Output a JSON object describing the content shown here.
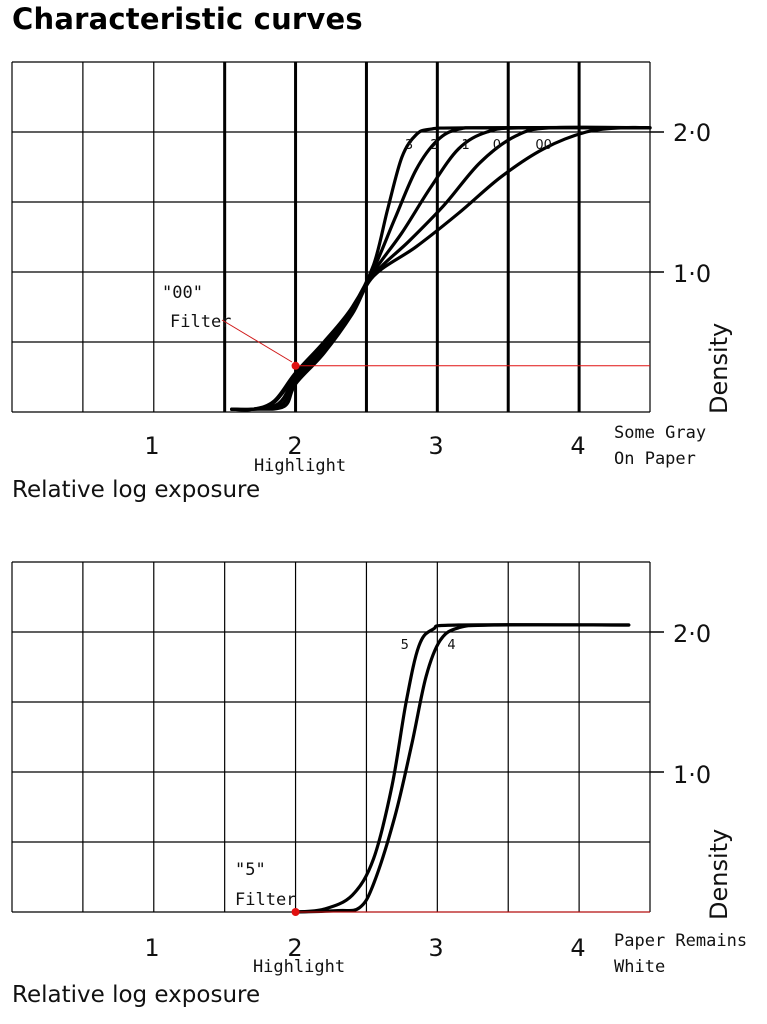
{
  "title": "Characteristic curves",
  "chart_data": [
    {
      "type": "line",
      "xlabel": "Relative log exposure",
      "ylabel": "Density",
      "xlim": [
        0,
        4.5
      ],
      "ylim": [
        0,
        2.5
      ],
      "x_ticks": [
        "1",
        "2",
        "3",
        "4"
      ],
      "y_ticks": [
        "1·0",
        "2·0"
      ],
      "grid": true,
      "series": [
        {
          "name": "3",
          "label_at": [
            2.8,
            1.88
          ],
          "points": [
            [
              1.55,
              0.02
            ],
            [
              1.7,
              0.02
            ],
            [
              1.85,
              0.08
            ],
            [
              2.0,
              0.28
            ],
            [
              2.2,
              0.5
            ],
            [
              2.4,
              0.75
            ],
            [
              2.55,
              1.05
            ],
            [
              2.65,
              1.45
            ],
            [
              2.75,
              1.82
            ],
            [
              2.85,
              1.98
            ],
            [
              2.95,
              2.02
            ],
            [
              3.2,
              2.03
            ],
            [
              4.5,
              2.03
            ]
          ]
        },
        {
          "name": "2",
          "label_at": [
            2.98,
            1.88
          ],
          "points": [
            [
              1.55,
              0.02
            ],
            [
              1.7,
              0.02
            ],
            [
              1.85,
              0.07
            ],
            [
              2.0,
              0.26
            ],
            [
              2.2,
              0.48
            ],
            [
              2.4,
              0.74
            ],
            [
              2.55,
              1.02
            ],
            [
              2.7,
              1.38
            ],
            [
              2.85,
              1.73
            ],
            [
              3.0,
              1.94
            ],
            [
              3.15,
              2.02
            ],
            [
              3.4,
              2.03
            ],
            [
              4.5,
              2.03
            ]
          ]
        },
        {
          "name": "1",
          "label_at": [
            3.2,
            1.88
          ],
          "points": [
            [
              1.55,
              0.02
            ],
            [
              1.7,
              0.02
            ],
            [
              1.88,
              0.06
            ],
            [
              2.0,
              0.24
            ],
            [
              2.2,
              0.46
            ],
            [
              2.4,
              0.73
            ],
            [
              2.55,
              1.0
            ],
            [
              2.75,
              1.28
            ],
            [
              2.95,
              1.6
            ],
            [
              3.15,
              1.88
            ],
            [
              3.35,
              2.0
            ],
            [
              3.6,
              2.03
            ],
            [
              4.5,
              2.03
            ]
          ]
        },
        {
          "name": "0",
          "label_at": [
            3.42,
            1.88
          ],
          "points": [
            [
              1.55,
              0.02
            ],
            [
              1.7,
              0.02
            ],
            [
              1.9,
              0.05
            ],
            [
              2.0,
              0.22
            ],
            [
              2.2,
              0.44
            ],
            [
              2.4,
              0.72
            ],
            [
              2.55,
              0.98
            ],
            [
              2.8,
              1.22
            ],
            [
              3.05,
              1.48
            ],
            [
              3.3,
              1.78
            ],
            [
              3.55,
              1.97
            ],
            [
              3.8,
              2.03
            ],
            [
              4.5,
              2.03
            ]
          ]
        },
        {
          "name": "00",
          "label_at": [
            3.75,
            1.88
          ],
          "points": [
            [
              1.55,
              0.02
            ],
            [
              1.7,
              0.02
            ],
            [
              1.92,
              0.04
            ],
            [
              2.0,
              0.2
            ],
            [
              2.2,
              0.42
            ],
            [
              2.4,
              0.7
            ],
            [
              2.55,
              0.97
            ],
            [
              2.85,
              1.18
            ],
            [
              3.15,
              1.42
            ],
            [
              3.45,
              1.68
            ],
            [
              3.75,
              1.88
            ],
            [
              4.05,
              2.0
            ],
            [
              4.3,
              2.03
            ],
            [
              4.5,
              2.03
            ]
          ]
        }
      ],
      "marker": {
        "x": 2.0,
        "y": 0.33,
        "color": "#e01010"
      },
      "annotations": {
        "filter_line1": "\"00\"",
        "filter_line2": "Filter",
        "highlight": "Highlight",
        "right_line1": "Some Gray",
        "right_line2": "On Paper"
      }
    },
    {
      "type": "line",
      "xlabel": "Relative log exposure",
      "ylabel": "Density",
      "xlim": [
        0,
        4.5
      ],
      "ylim": [
        0,
        2.5
      ],
      "x_ticks": [
        "1",
        "2",
        "3",
        "4"
      ],
      "y_ticks": [
        "1·0",
        "2·0"
      ],
      "grid": true,
      "series": [
        {
          "name": "5",
          "label_at": [
            2.77,
            1.88
          ],
          "points": [
            [
              2.0,
              0.0
            ],
            [
              2.2,
              0.02
            ],
            [
              2.4,
              0.12
            ],
            [
              2.55,
              0.38
            ],
            [
              2.68,
              0.9
            ],
            [
              2.78,
              1.5
            ],
            [
              2.87,
              1.9
            ],
            [
              2.97,
              2.02
            ],
            [
              3.15,
              2.05
            ],
            [
              4.35,
              2.05
            ]
          ]
        },
        {
          "name": "4",
          "label_at": [
            3.1,
            1.88
          ],
          "points": [
            [
              2.0,
              0.0
            ],
            [
              2.3,
              0.01
            ],
            [
              2.45,
              0.03
            ],
            [
              2.55,
              0.2
            ],
            [
              2.7,
              0.68
            ],
            [
              2.82,
              1.2
            ],
            [
              2.92,
              1.68
            ],
            [
              3.02,
              1.94
            ],
            [
              3.15,
              2.03
            ],
            [
              3.4,
              2.05
            ],
            [
              4.35,
              2.05
            ]
          ]
        }
      ],
      "marker": {
        "x": 2.0,
        "y": 0.0,
        "color": "#e01010"
      },
      "annotations": {
        "filter_line1": "\"5\"",
        "filter_line2": "Filter",
        "highlight": "Highlight",
        "right_line1": "Paper Remains",
        "right_line2": "White"
      }
    }
  ]
}
